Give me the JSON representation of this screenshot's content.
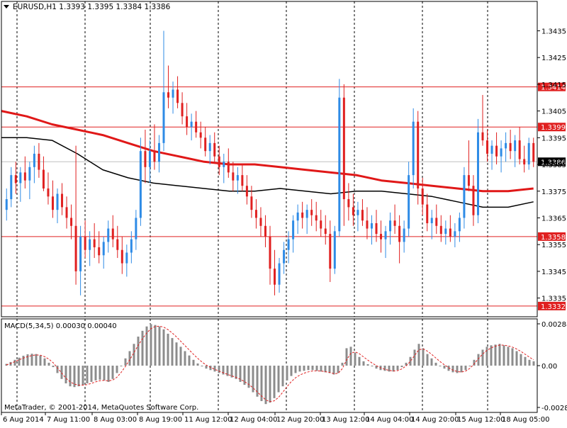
{
  "app": {
    "symbol_header": "EURUSD,H1  1.3393 1.3395 1.3384 1.3386",
    "copyright": "MetaTrader, © 2001-2014, MetaQuotes Software Corp."
  },
  "colors": {
    "bull": "#2e8be6",
    "bear": "#e02020",
    "ma_fast": "#e01818",
    "ma_slow": "#000000",
    "level_line": "#e02020",
    "grid": "#000000",
    "macd_hist": "#8c8c8c",
    "macd_signal": "#e02020"
  },
  "icons": {
    "dropdown": "triangle-down-icon"
  },
  "chart_data": [
    {
      "type": "candlestick",
      "title": "EURUSD,H1",
      "ohlc_header": {
        "open": 1.3393,
        "high": 1.3395,
        "low": 1.3384,
        "close": 1.3386
      },
      "ylim": [
        1.3328,
        1.3446
      ],
      "y_ticks": [
        "1.3435",
        "1.3425",
        "1.3415",
        "1.3405",
        "1.3395",
        "1.3385",
        "1.3375",
        "1.3365",
        "1.3355",
        "1.3345",
        "1.3335"
      ],
      "y_tick_values": [
        1.3435,
        1.3425,
        1.3415,
        1.3405,
        1.3395,
        1.3385,
        1.3375,
        1.3365,
        1.3355,
        1.3345,
        1.3335
      ],
      "x_ticks": [
        "6 Aug 2014",
        "7 Aug 11:00",
        "8 Aug 03:00",
        "8 Aug 19:00",
        "11 Aug 12:00",
        "12 Aug 04:00",
        "12 Aug 20:00",
        "13 Aug 12:00",
        "14 Aug 04:00",
        "14 Aug 20:00",
        "15 Aug 12:00",
        "18 Aug 05:00"
      ],
      "levels": [
        {
          "label": "1.3414",
          "value": 1.3414
        },
        {
          "label": "1.3399",
          "value": 1.3399
        },
        {
          "label": "1.3358",
          "value": 1.3358
        },
        {
          "label": "1.3332",
          "value": 1.3332
        }
      ],
      "current_price": {
        "label": "1.3386",
        "value": 1.3386
      },
      "candles": [
        [
          1.3368,
          1.3376,
          1.3364,
          1.3372
        ],
        [
          1.3372,
          1.3384,
          1.3369,
          1.3381
        ],
        [
          1.3381,
          1.3386,
          1.3374,
          1.3378
        ],
        [
          1.3378,
          1.3384,
          1.3371,
          1.3382
        ],
        [
          1.3382,
          1.3388,
          1.3376,
          1.3379
        ],
        [
          1.3379,
          1.3386,
          1.3372,
          1.3384
        ],
        [
          1.3384,
          1.3392,
          1.3378,
          1.3389
        ],
        [
          1.3389,
          1.3393,
          1.338,
          1.3383
        ],
        [
          1.3383,
          1.3388,
          1.3375,
          1.3376
        ],
        [
          1.3376,
          1.3382,
          1.337,
          1.3373
        ],
        [
          1.3373,
          1.3379,
          1.3365,
          1.3368
        ],
        [
          1.3368,
          1.3376,
          1.3363,
          1.3374
        ],
        [
          1.3374,
          1.3378,
          1.3366,
          1.3369
        ],
        [
          1.3369,
          1.3373,
          1.3361,
          1.3365
        ],
        [
          1.3365,
          1.337,
          1.3357,
          1.3362
        ],
        [
          1.3362,
          1.3392,
          1.334,
          1.3345
        ],
        [
          1.3345,
          1.3362,
          1.3336,
          1.3358
        ],
        [
          1.3358,
          1.3364,
          1.335,
          1.3353
        ],
        [
          1.3353,
          1.336,
          1.3347,
          1.3357
        ],
        [
          1.3357,
          1.3363,
          1.335,
          1.3354
        ],
        [
          1.3354,
          1.336,
          1.3348,
          1.3351
        ],
        [
          1.3351,
          1.3358,
          1.3346,
          1.3356
        ],
        [
          1.3356,
          1.3364,
          1.3352,
          1.3361
        ],
        [
          1.3361,
          1.3366,
          1.3354,
          1.3357
        ],
        [
          1.3357,
          1.3362,
          1.335,
          1.3353
        ],
        [
          1.3353,
          1.3358,
          1.3344,
          1.3348
        ],
        [
          1.3348,
          1.3355,
          1.3343,
          1.3352
        ],
        [
          1.3352,
          1.336,
          1.3348,
          1.3357
        ],
        [
          1.3357,
          1.3368,
          1.3353,
          1.3365
        ],
        [
          1.3365,
          1.3395,
          1.3362,
          1.339
        ],
        [
          1.339,
          1.3398,
          1.3378,
          1.3384
        ],
        [
          1.3384,
          1.3394,
          1.3378,
          1.339
        ],
        [
          1.339,
          1.34,
          1.3383,
          1.3386
        ],
        [
          1.3386,
          1.3396,
          1.3382,
          1.3393
        ],
        [
          1.3393,
          1.3435,
          1.339,
          1.3412
        ],
        [
          1.3412,
          1.3422,
          1.3406,
          1.341
        ],
        [
          1.341,
          1.3416,
          1.3404,
          1.3413
        ],
        [
          1.3413,
          1.3418,
          1.3406,
          1.3408
        ],
        [
          1.3408,
          1.3412,
          1.34,
          1.3403
        ],
        [
          1.3403,
          1.3408,
          1.3396,
          1.3399
        ],
        [
          1.3399,
          1.3404,
          1.3394,
          1.3401
        ],
        [
          1.3401,
          1.3405,
          1.3395,
          1.3397
        ],
        [
          1.3397,
          1.3401,
          1.3391,
          1.3395
        ],
        [
          1.3395,
          1.3399,
          1.3388,
          1.339
        ],
        [
          1.339,
          1.3396,
          1.3385,
          1.3393
        ],
        [
          1.3393,
          1.3397,
          1.3386,
          1.3388
        ],
        [
          1.3388,
          1.3392,
          1.3381,
          1.3384
        ],
        [
          1.3384,
          1.3389,
          1.3378,
          1.3386
        ],
        [
          1.3386,
          1.3391,
          1.338,
          1.3382
        ],
        [
          1.3382,
          1.3386,
          1.3375,
          1.3379
        ],
        [
          1.3379,
          1.3384,
          1.3374,
          1.3381
        ],
        [
          1.3381,
          1.3385,
          1.3375,
          1.3377
        ],
        [
          1.3377,
          1.3381,
          1.337,
          1.3373
        ],
        [
          1.3373,
          1.3377,
          1.3365,
          1.3368
        ],
        [
          1.3368,
          1.3372,
          1.3361,
          1.3365
        ],
        [
          1.3365,
          1.3369,
          1.3358,
          1.3362
        ],
        [
          1.3362,
          1.3366,
          1.3354,
          1.3358
        ],
        [
          1.3358,
          1.3362,
          1.334,
          1.3346
        ],
        [
          1.3346,
          1.3353,
          1.3336,
          1.334
        ],
        [
          1.334,
          1.335,
          1.3337,
          1.3348
        ],
        [
          1.3348,
          1.3356,
          1.3344,
          1.3353
        ],
        [
          1.3353,
          1.336,
          1.3348,
          1.3357
        ],
        [
          1.3357,
          1.3366,
          1.3352,
          1.3364
        ],
        [
          1.3364,
          1.337,
          1.3359,
          1.3367
        ],
        [
          1.3367,
          1.3371,
          1.3361,
          1.3365
        ],
        [
          1.3365,
          1.337,
          1.3359,
          1.3368
        ],
        [
          1.3368,
          1.3372,
          1.3362,
          1.3366
        ],
        [
          1.3366,
          1.3371,
          1.336,
          1.3364
        ],
        [
          1.3364,
          1.3368,
          1.3358,
          1.3361
        ],
        [
          1.3361,
          1.3366,
          1.3355,
          1.3359
        ],
        [
          1.3359,
          1.3364,
          1.3341,
          1.3346
        ],
        [
          1.3346,
          1.3362,
          1.3344,
          1.336
        ],
        [
          1.336,
          1.3417,
          1.3358,
          1.341
        ],
        [
          1.341,
          1.3415,
          1.3362,
          1.3372
        ],
        [
          1.3372,
          1.3378,
          1.3364,
          1.3369
        ],
        [
          1.3369,
          1.3374,
          1.3362,
          1.3366
        ],
        [
          1.3366,
          1.3371,
          1.336,
          1.3368
        ],
        [
          1.3368,
          1.3372,
          1.3362,
          1.3364
        ],
        [
          1.3364,
          1.3369,
          1.3357,
          1.3361
        ],
        [
          1.3361,
          1.3366,
          1.3355,
          1.3363
        ],
        [
          1.3363,
          1.3368,
          1.3356,
          1.3359
        ],
        [
          1.3359,
          1.3364,
          1.3352,
          1.3357
        ],
        [
          1.3357,
          1.3362,
          1.335,
          1.336
        ],
        [
          1.336,
          1.3367,
          1.3355,
          1.3364
        ],
        [
          1.3364,
          1.337,
          1.3359,
          1.3362
        ],
        [
          1.3362,
          1.3366,
          1.3348,
          1.3356
        ],
        [
          1.3356,
          1.3364,
          1.3352,
          1.3361
        ],
        [
          1.3361,
          1.3386,
          1.3358,
          1.3381
        ],
        [
          1.3381,
          1.3406,
          1.3376,
          1.3401
        ],
        [
          1.3401,
          1.3405,
          1.337,
          1.3376
        ],
        [
          1.3376,
          1.338,
          1.3366,
          1.337
        ],
        [
          1.337,
          1.3374,
          1.336,
          1.3363
        ],
        [
          1.3363,
          1.3368,
          1.3357,
          1.3365
        ],
        [
          1.3365,
          1.337,
          1.3359,
          1.3362
        ],
        [
          1.3362,
          1.3366,
          1.3356,
          1.3359
        ],
        [
          1.3359,
          1.3364,
          1.3355,
          1.3361
        ],
        [
          1.3361,
          1.3366,
          1.3356,
          1.3358
        ],
        [
          1.3358,
          1.3363,
          1.3354,
          1.336
        ],
        [
          1.336,
          1.3367,
          1.3356,
          1.3365
        ],
        [
          1.3365,
          1.3384,
          1.3361,
          1.3381
        ],
        [
          1.3381,
          1.3394,
          1.3375,
          1.3377
        ],
        [
          1.3377,
          1.3381,
          1.3362,
          1.3366
        ],
        [
          1.3366,
          1.3402,
          1.3363,
          1.3397
        ],
        [
          1.3397,
          1.3411,
          1.3392,
          1.3394
        ],
        [
          1.3394,
          1.3398,
          1.3386,
          1.3389
        ],
        [
          1.3389,
          1.3394,
          1.3383,
          1.3392
        ],
        [
          1.3392,
          1.3397,
          1.3385,
          1.3388
        ],
        [
          1.3388,
          1.3394,
          1.3382,
          1.3391
        ],
        [
          1.3391,
          1.3397,
          1.3386,
          1.3393
        ],
        [
          1.3393,
          1.3398,
          1.3387,
          1.339
        ],
        [
          1.339,
          1.3396,
          1.3384,
          1.3394
        ],
        [
          1.3394,
          1.3399,
          1.3385,
          1.3387
        ],
        [
          1.3387,
          1.3392,
          1.3382,
          1.3385
        ],
        [
          1.3385,
          1.3395,
          1.3383,
          1.3393
        ],
        [
          1.3393,
          1.3395,
          1.3384,
          1.3386
        ]
      ],
      "series": [
        {
          "values": [
            1.3405,
            1.3403,
            1.34,
            1.3398,
            1.3396,
            1.3393,
            1.339,
            1.3388,
            1.3386,
            1.3385,
            1.3385,
            1.3384,
            1.3383,
            1.3382,
            1.3381,
            1.3379,
            1.3378,
            1.3377,
            1.3376,
            1.3375,
            1.3375,
            1.3376
          ]
        },
        {
          "values": [
            1.3395,
            1.3395,
            1.3394,
            1.3389,
            1.3383,
            1.338,
            1.3378,
            1.3377,
            1.3376,
            1.3375,
            1.3375,
            1.3376,
            1.3375,
            1.3374,
            1.3375,
            1.3375,
            1.3374,
            1.3373,
            1.3371,
            1.3369,
            1.3369,
            1.3371
          ]
        }
      ]
    },
    {
      "type": "bar",
      "title": "MACD(5,34,5) 0.00030 0.00040",
      "y_ticks": [
        "0.00288",
        "0.00",
        "-0.00283"
      ],
      "y_tick_values": [
        0.00288,
        0.0,
        -0.00283
      ],
      "ylim": [
        -0.00283,
        0.00288
      ],
      "values": [
        0.00012,
        0.00025,
        0.0004,
        0.00055,
        0.00068,
        0.00078,
        0.00082,
        0.0008,
        0.0007,
        0.0005,
        0.0002,
        -0.0001,
        -0.0005,
        -0.0009,
        -0.0012,
        -0.0014,
        -0.00145,
        -0.0014,
        -0.0013,
        -0.0012,
        -0.0011,
        -0.001,
        -0.00095,
        -0.001,
        -0.0011,
        -0.0009,
        -0.0005,
        0.0,
        0.0005,
        0.001,
        0.0015,
        0.002,
        0.0024,
        0.0027,
        0.00286,
        0.0028,
        0.0027,
        0.0025,
        0.0022,
        0.0019,
        0.0016,
        0.0013,
        0.001,
        0.0007,
        0.0004,
        0.00015,
        -5e-05,
        -0.0002,
        -0.0003,
        -0.0004,
        -0.0005,
        -0.0006,
        -0.0007,
        -0.0008,
        -0.0009,
        -0.0011,
        -0.0013,
        -0.0015,
        -0.0018,
        -0.0021,
        -0.0024,
        -0.0026,
        -0.0025,
        -0.0022,
        -0.0018,
        -0.0014,
        -0.001,
        -0.0007,
        -0.0005,
        -0.0004,
        -0.00035,
        -0.0003,
        -0.0003,
        -0.00035,
        -0.0004,
        -0.00045,
        -0.0005,
        -0.0006,
        -0.0005,
        0.0002,
        0.0012,
        0.0013,
        0.0009,
        0.0006,
        0.0003,
        0.0001,
        -5e-05,
        -0.0002,
        -0.0003,
        -0.00035,
        -0.0004,
        -0.0004,
        -0.0003,
        -0.0001,
        0.0002,
        0.0006,
        0.0011,
        0.0015,
        0.0012,
        0.0008,
        0.0005,
        0.0002,
        0.0,
        -0.0002,
        -0.00035,
        -0.00045,
        -0.0005,
        -0.00045,
        -0.0003,
        0.0,
        0.0004,
        0.0008,
        0.0011,
        0.0013,
        0.0014,
        0.00145,
        0.0015,
        0.0014,
        0.0013,
        0.0012,
        0.001,
        0.0008,
        0.0006,
        0.0004,
        0.0003
      ],
      "signal": [
        5e-05,
        0.00015,
        0.00028,
        0.0004,
        0.00052,
        0.00062,
        0.0007,
        0.00074,
        0.00072,
        0.00062,
        0.00045,
        0.0002,
        -0.00015,
        -0.0005,
        -0.00085,
        -0.0011,
        -0.00125,
        -0.00132,
        -0.00132,
        -0.00128,
        -0.0012,
        -0.0011,
        -0.00102,
        -0.001,
        -0.00103,
        -0.00098,
        -0.00078,
        -0.00045,
        -5e-05,
        0.0004,
        0.0009,
        0.0014,
        0.00185,
        0.00225,
        0.00255,
        0.0027,
        0.00272,
        0.00265,
        0.00248,
        0.00225,
        0.00198,
        0.00168,
        0.00138,
        0.00108,
        0.00078,
        0.0005,
        0.00025,
        4e-05,
        -0.00012,
        -0.00025,
        -0.00037,
        -0.00048,
        -0.00059,
        -0.00069,
        -0.00079,
        -0.00092,
        -0.00108,
        -0.00127,
        -0.0015,
        -0.00178,
        -0.00206,
        -0.00232,
        -0.00244,
        -0.00238,
        -0.00215,
        -0.0018,
        -0.00142,
        -0.00108,
        -0.00082,
        -0.00064,
        -0.00051,
        -0.00042,
        -0.00036,
        -0.00035,
        -0.00037,
        -0.00041,
        -0.00046,
        -0.00054,
        -0.00053,
        -0.0002,
        0.0004,
        0.00085,
        0.00095,
        0.00082,
        0.0006,
        0.00038,
        0.00018,
        0.0,
        -0.00015,
        -0.00025,
        -0.00032,
        -0.00036,
        -0.00034,
        -0.00022,
        -2e-05,
        0.0003,
        0.0007,
        0.0011,
        0.00115,
        0.001,
        0.00078,
        0.00052,
        0.00028,
        6e-05,
        -0.00014,
        -0.0003,
        -0.0004,
        -0.00043,
        -0.00037,
        -0.00018,
        0.00012,
        0.00048,
        0.0008,
        0.00105,
        0.00122,
        0.00134,
        0.00142,
        0.00141,
        0.00136,
        0.00128,
        0.00114,
        0.00098,
        0.00078,
        0.00058,
        0.0004
      ]
    }
  ]
}
